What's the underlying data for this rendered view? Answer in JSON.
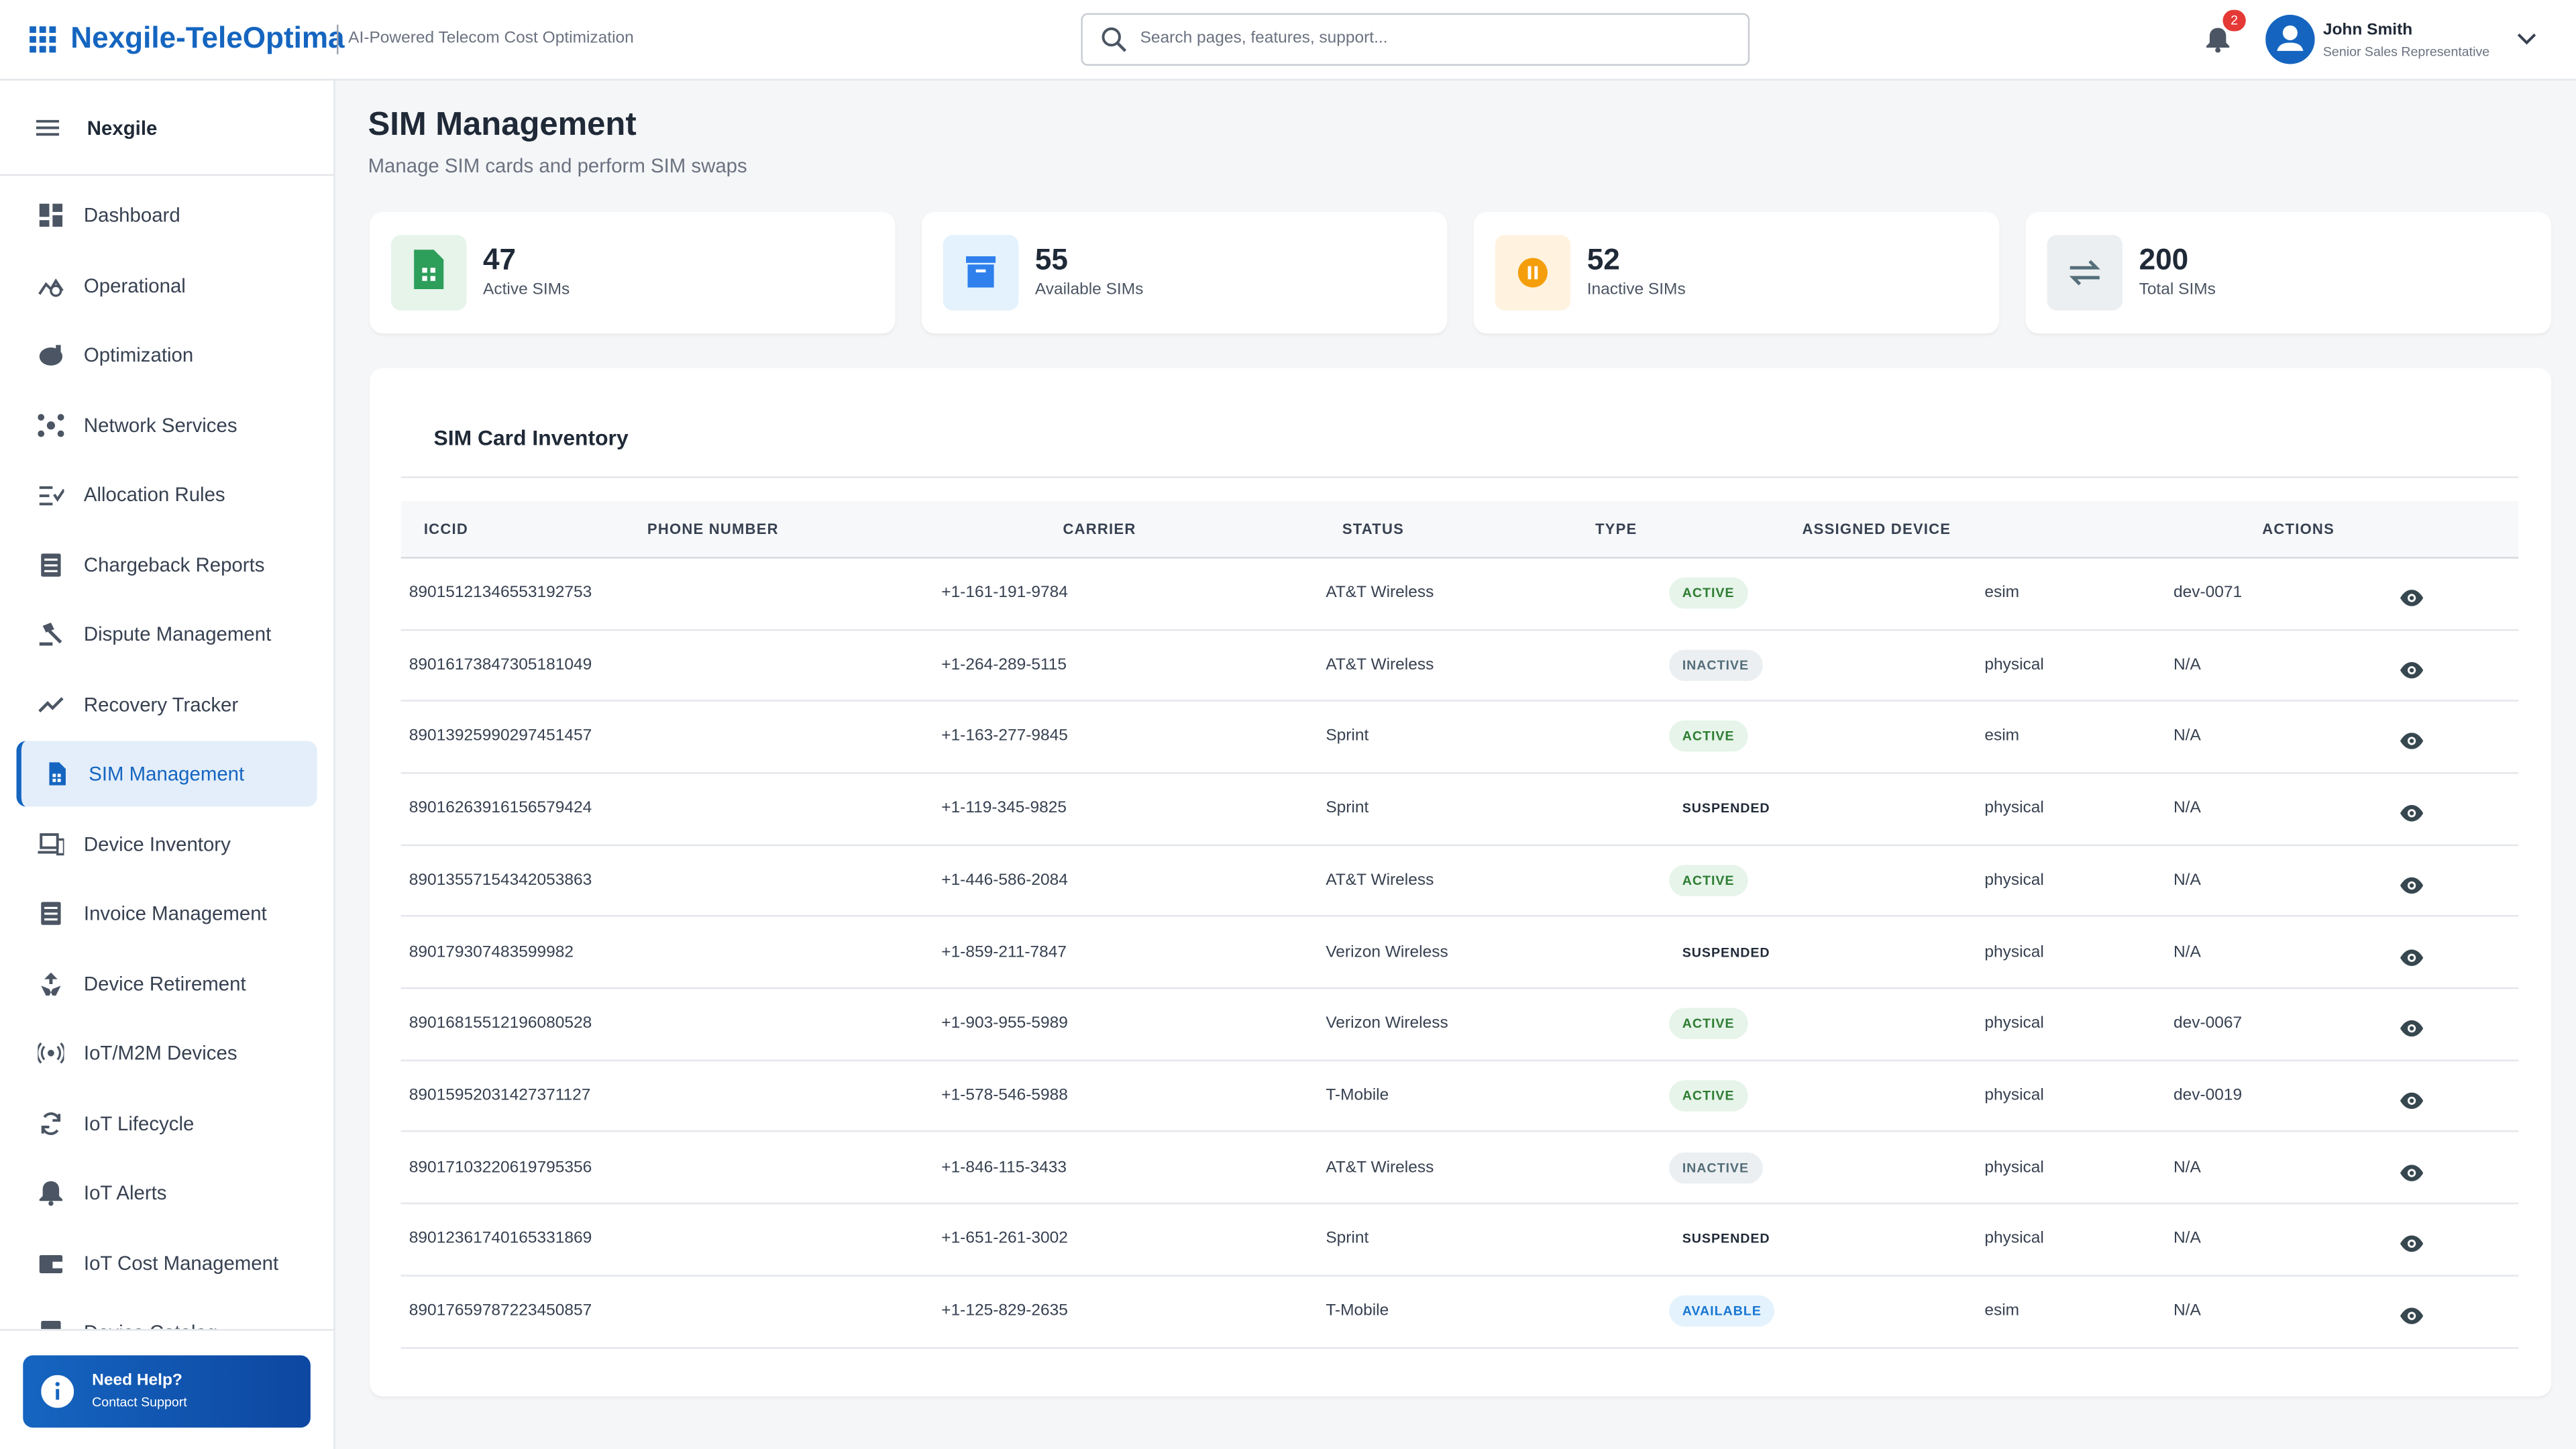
{
  "header": {
    "brand": "Nexgile-TeleOptima",
    "tagline": "AI-Powered Telecom Cost Optimization",
    "search_placeholder": "Search pages, features, support...",
    "notification_count": "2",
    "user_name": "John Smith",
    "user_role": "Senior Sales Representative"
  },
  "sidebar": {
    "org": "Nexgile",
    "items": [
      "Dashboard",
      "Operational",
      "Optimization",
      "Network Services",
      "Allocation Rules",
      "Chargeback Reports",
      "Dispute Management",
      "Recovery Tracker",
      "SIM Management",
      "Device Inventory",
      "Invoice Management",
      "Device Retirement",
      "IoT/M2M Devices",
      "IoT Lifecycle",
      "IoT Alerts",
      "IoT Cost Management",
      "Device Catalog"
    ],
    "active": "SIM Management",
    "help_title": "Need Help?",
    "help_subtitle": "Contact Support"
  },
  "page": {
    "title": "SIM Management",
    "subtitle": "Manage SIM cards and perform SIM swaps"
  },
  "stats": [
    {
      "value": "47",
      "label": "Active SIMs"
    },
    {
      "value": "55",
      "label": "Available SIMs"
    },
    {
      "value": "52",
      "label": "Inactive SIMs"
    },
    {
      "value": "200",
      "label": "Total SIMs"
    }
  ],
  "table": {
    "title": "SIM Card Inventory",
    "columns": [
      "ICCID",
      "PHONE NUMBER",
      "CARRIER",
      "STATUS",
      "TYPE",
      "ASSIGNED DEVICE",
      "ACTIONS"
    ],
    "rows": [
      [
        "89015121346553192753",
        "+1-161-191-9784",
        "AT&T Wireless",
        "ACTIVE",
        "esim",
        "dev-0071"
      ],
      [
        "89016173847305181049",
        "+1-264-289-5115",
        "AT&T Wireless",
        "INACTIVE",
        "physical",
        "N/A"
      ],
      [
        "89013925990297451457",
        "+1-163-277-9845",
        "Sprint",
        "ACTIVE",
        "esim",
        "N/A"
      ],
      [
        "89016263916156579424",
        "+1-119-345-9825",
        "Sprint",
        "SUSPENDED",
        "physical",
        "N/A"
      ],
      [
        "89013557154342053863",
        "+1-446-586-2084",
        "AT&T Wireless",
        "ACTIVE",
        "physical",
        "N/A"
      ],
      [
        "890179307483599982",
        "+1-859-211-7847",
        "Verizon Wireless",
        "SUSPENDED",
        "physical",
        "N/A"
      ],
      [
        "89016815512196080528",
        "+1-903-955-5989",
        "Verizon Wireless",
        "ACTIVE",
        "physical",
        "dev-0067"
      ],
      [
        "89015952031427371127",
        "+1-578-546-5988",
        "T-Mobile",
        "ACTIVE",
        "physical",
        "dev-0019"
      ],
      [
        "89017103220619795356",
        "+1-846-115-3433",
        "AT&T Wireless",
        "INACTIVE",
        "physical",
        "N/A"
      ],
      [
        "89012361740165331869",
        "+1-651-261-3002",
        "Sprint",
        "SUSPENDED",
        "physical",
        "N/A"
      ],
      [
        "89017659787223450857",
        "+1-125-829-2635",
        "T-Mobile",
        "AVAILABLE",
        "esim",
        "N/A"
      ]
    ]
  }
}
